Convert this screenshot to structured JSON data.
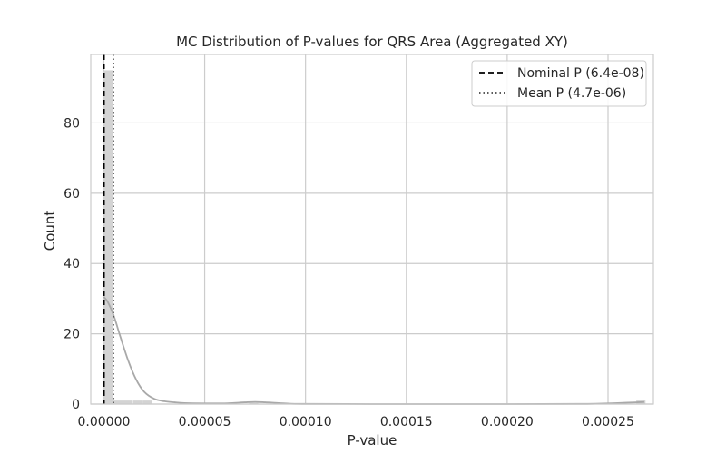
{
  "chart_data": {
    "type": "histogram",
    "title": "MC Distribution of P-values for QRS Area (Aggregated XY)",
    "xlabel": "P-value",
    "ylabel": "Count",
    "xlim": [
      -6.5e-06,
      0.0002725
    ],
    "ylim": [
      0,
      99.5
    ],
    "x_ticks": [
      0.0,
      5e-05,
      0.0001,
      0.00015,
      0.0002,
      0.00025
    ],
    "x_tick_labels": [
      "0.00000",
      "0.00005",
      "0.00010",
      "0.00015",
      "0.00020",
      "0.00025"
    ],
    "y_ticks": [
      0,
      20,
      40,
      60,
      80
    ],
    "y_tick_labels": [
      "0",
      "20",
      "40",
      "60",
      "80"
    ],
    "grid": true,
    "legend_position": "top-right",
    "bins": [
      {
        "x0": 0.0,
        "x1": 4.8e-06,
        "count": 95
      },
      {
        "x0": 4.8e-06,
        "x1": 9.6e-06,
        "count": 1
      },
      {
        "x0": 9.6e-06,
        "x1": 1.44e-05,
        "count": 1
      },
      {
        "x0": 1.44e-05,
        "x1": 1.92e-05,
        "count": 1
      },
      {
        "x0": 1.92e-05,
        "x1": 2.4e-05,
        "count": 1
      },
      {
        "x0": 7.2e-05,
        "x1": 7.68e-05,
        "count": 0.3
      },
      {
        "x0": 0.000264,
        "x1": 0.0002688,
        "count": 1
      }
    ],
    "kde": {
      "x": [
        0.0,
        2e-06,
        5e-06,
        8e-06,
        1.2e-05,
        1.6e-05,
        2e-05,
        2.5e-05,
        3e-05,
        3.5e-05,
        4e-05,
        5e-05,
        6e-05,
        7e-05,
        7.5e-05,
        8e-05,
        9e-05,
        0.0001,
        0.00015,
        0.0002,
        0.00024,
        0.00026,
        0.000268
      ],
      "y": [
        30.5,
        29,
        25,
        19.5,
        12.5,
        7,
        3.5,
        1.5,
        0.8,
        0.5,
        0.3,
        0.2,
        0.2,
        0.5,
        0.6,
        0.5,
        0.2,
        0.05,
        0.0,
        0.0,
        0.05,
        0.4,
        0.6
      ]
    },
    "reference_lines": [
      {
        "name": "Nominal P (6.4e-08)",
        "x": 6.4e-08,
        "style": "dashed",
        "color": "#000000"
      },
      {
        "name": "Mean P (4.7e-06)",
        "x": 4.7e-06,
        "style": "dotted",
        "color": "#444444"
      }
    ],
    "colors": {
      "bar": "#d3d3d3",
      "kde": "#a9a9a9",
      "grid": "#cccccc",
      "frame": "#cccccc"
    }
  }
}
